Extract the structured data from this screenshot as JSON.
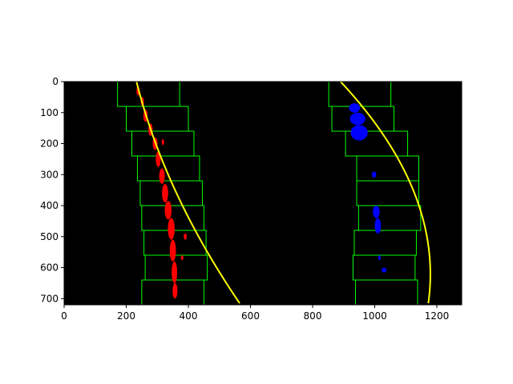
{
  "chart_data": {
    "type": "scatter",
    "title": "",
    "xlabel": "",
    "ylabel": "",
    "xlim": [
      0,
      1280
    ],
    "ylim": [
      720,
      0
    ],
    "y_inverted": true,
    "grid": false,
    "legend": "none",
    "background_color": "#000000",
    "x_ticks": [
      0,
      200,
      400,
      600,
      800,
      1000,
      1200
    ],
    "x_tick_labels": [
      "0",
      "200",
      "400",
      "600",
      "800",
      "1000",
      "1200"
    ],
    "y_ticks": [
      0,
      100,
      200,
      300,
      400,
      500,
      600,
      700
    ],
    "y_tick_labels": [
      "0",
      "100",
      "200",
      "300",
      "400",
      "500",
      "600",
      "700"
    ],
    "colors": {
      "left_pixels": "#ff0000",
      "right_pixels": "#0000ff",
      "windows": "#00ff00",
      "fit": "#ffff00"
    },
    "series": [
      {
        "kind": "sliding-windows",
        "lane": "left",
        "windows": [
          {
            "x_min": 172,
            "x_max": 372,
            "y_min": 0,
            "y_max": 80
          },
          {
            "x_min": 200,
            "x_max": 400,
            "y_min": 80,
            "y_max": 160
          },
          {
            "x_min": 218,
            "x_max": 418,
            "y_min": 160,
            "y_max": 240
          },
          {
            "x_min": 236,
            "x_max": 436,
            "y_min": 240,
            "y_max": 320
          },
          {
            "x_min": 245,
            "x_max": 445,
            "y_min": 320,
            "y_max": 400
          },
          {
            "x_min": 250,
            "x_max": 450,
            "y_min": 400,
            "y_max": 480
          },
          {
            "x_min": 257,
            "x_max": 457,
            "y_min": 480,
            "y_max": 560
          },
          {
            "x_min": 261,
            "x_max": 461,
            "y_min": 560,
            "y_max": 640
          },
          {
            "x_min": 250,
            "x_max": 450,
            "y_min": 640,
            "y_max": 720
          }
        ]
      },
      {
        "kind": "sliding-windows",
        "lane": "right",
        "windows": [
          {
            "x_min": 852,
            "x_max": 1052,
            "y_min": 0,
            "y_max": 80
          },
          {
            "x_min": 862,
            "x_max": 1062,
            "y_min": 80,
            "y_max": 160
          },
          {
            "x_min": 906,
            "x_max": 1106,
            "y_min": 160,
            "y_max": 240
          },
          {
            "x_min": 942,
            "x_max": 1142,
            "y_min": 240,
            "y_max": 320
          },
          {
            "x_min": 942,
            "x_max": 1142,
            "y_min": 320,
            "y_max": 400
          },
          {
            "x_min": 948,
            "x_max": 1148,
            "y_min": 400,
            "y_max": 480
          },
          {
            "x_min": 934,
            "x_max": 1134,
            "y_min": 480,
            "y_max": 560
          },
          {
            "x_min": 930,
            "x_max": 1130,
            "y_min": 560,
            "y_max": 640
          },
          {
            "x_min": 938,
            "x_max": 1138,
            "y_min": 640,
            "y_max": 720
          }
        ]
      },
      {
        "kind": "lane-pixels",
        "lane": "left",
        "blobs": [
          {
            "x": 238,
            "y": 15,
            "w": 10,
            "h": 30
          },
          {
            "x": 252,
            "y": 50,
            "w": 10,
            "h": 30
          },
          {
            "x": 262,
            "y": 90,
            "w": 14,
            "h": 40
          },
          {
            "x": 278,
            "y": 135,
            "w": 14,
            "h": 40
          },
          {
            "x": 293,
            "y": 180,
            "w": 16,
            "h": 40
          },
          {
            "x": 318,
            "y": 185,
            "w": 8,
            "h": 20
          },
          {
            "x": 303,
            "y": 225,
            "w": 16,
            "h": 50
          },
          {
            "x": 315,
            "y": 280,
            "w": 18,
            "h": 50
          },
          {
            "x": 325,
            "y": 330,
            "w": 20,
            "h": 60
          },
          {
            "x": 335,
            "y": 385,
            "w": 22,
            "h": 60
          },
          {
            "x": 345,
            "y": 440,
            "w": 22,
            "h": 70
          },
          {
            "x": 350,
            "y": 510,
            "w": 20,
            "h": 70
          },
          {
            "x": 355,
            "y": 580,
            "w": 18,
            "h": 70
          },
          {
            "x": 357,
            "y": 650,
            "w": 16,
            "h": 50
          },
          {
            "x": 390,
            "y": 490,
            "w": 10,
            "h": 20
          },
          {
            "x": 380,
            "y": 560,
            "w": 8,
            "h": 16
          }
        ]
      },
      {
        "kind": "lane-pixels",
        "lane": "right",
        "blobs": [
          {
            "x": 935,
            "y": 70,
            "w": 35,
            "h": 30
          },
          {
            "x": 945,
            "y": 100,
            "w": 50,
            "h": 40
          },
          {
            "x": 950,
            "y": 140,
            "w": 55,
            "h": 50
          },
          {
            "x": 998,
            "y": 290,
            "w": 14,
            "h": 20
          },
          {
            "x": 1005,
            "y": 400,
            "w": 22,
            "h": 40
          },
          {
            "x": 1010,
            "y": 440,
            "w": 20,
            "h": 50
          },
          {
            "x": 1030,
            "y": 600,
            "w": 16,
            "h": 16
          },
          {
            "x": 1015,
            "y": 560,
            "w": 8,
            "h": 16
          }
        ]
      },
      {
        "kind": "polynomial-fit",
        "lane": "left",
        "coefficients": [
          0.0003,
          0.25,
          233
        ],
        "y_range": [
          0,
          719
        ]
      },
      {
        "kind": "polynomial-fit",
        "lane": "right",
        "coefficients": [
          -0.000748,
          0.93,
          890
        ],
        "y_range": [
          0,
          719
        ]
      }
    ]
  }
}
